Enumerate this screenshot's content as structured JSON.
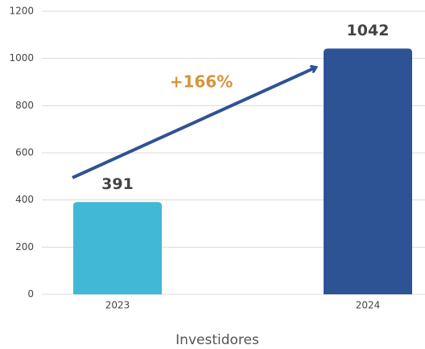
{
  "chart_data": {
    "type": "bar",
    "categories": [
      "2023",
      "2024"
    ],
    "values": [
      391,
      1042
    ],
    "colors": [
      "#41b8d5",
      "#2e5394"
    ],
    "ylim": [
      0,
      1200
    ],
    "yticks": [
      0,
      200,
      400,
      600,
      800,
      1000,
      1200
    ],
    "grid": true,
    "xlabel": "Investidores",
    "annotation": "+166%",
    "annotation_color": "#d6953a"
  }
}
